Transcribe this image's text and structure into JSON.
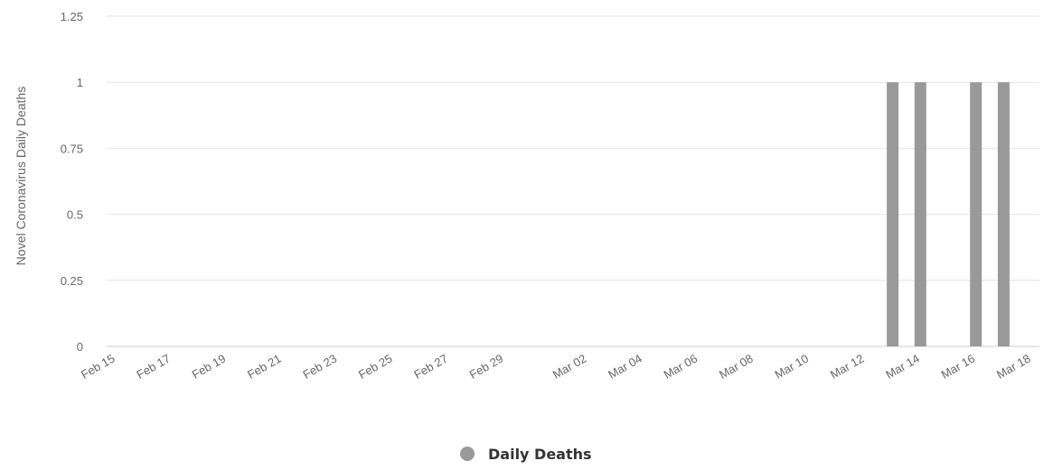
{
  "chart_data": {
    "type": "bar",
    "ylabel": "Novel Coronavirus Daily Deaths",
    "ylim": [
      0,
      1.25
    ],
    "yticks": [
      "0",
      "0.25",
      "0.5",
      "0.75",
      "1",
      "1.25"
    ],
    "x_tick_labels": [
      "Feb 15",
      "Feb 17",
      "Feb 19",
      "Feb 21",
      "Feb 23",
      "Feb 25",
      "Feb 27",
      "Feb 29",
      "Mar 02",
      "Mar 04",
      "Mar 06",
      "Mar 08",
      "Mar 10",
      "Mar 12",
      "Mar 14",
      "Mar 16",
      "Mar 18"
    ],
    "series": [
      {
        "name": "Daily Deaths",
        "color": "#999999",
        "points": [
          {
            "date": "Mar 13",
            "value": 1
          },
          {
            "date": "Mar 14",
            "value": 1
          },
          {
            "date": "Mar 16",
            "value": 1
          },
          {
            "date": "Mar 17",
            "value": 1
          }
        ]
      }
    ],
    "legend_position": "bottom-center",
    "grid": true
  }
}
